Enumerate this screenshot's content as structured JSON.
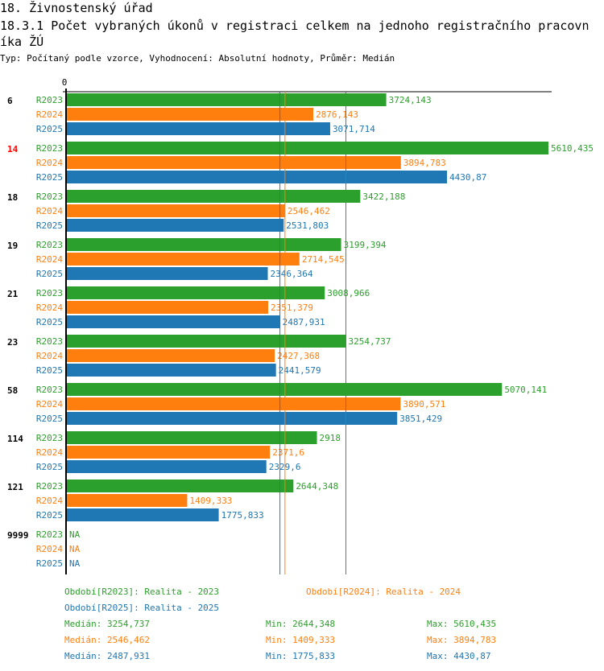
{
  "header": {
    "title": "18. Živnostenský úřad",
    "subtitle": "18.3.1 Počet vybraných úkonů v registraci celkem na jednoho registračního pracovníka ŽÚ",
    "meta": "Typ: Počítaný podle vzorce, Vyhodnocení: Absolutní hodnoty, Průměr: Medián"
  },
  "colors": {
    "R2023": "#2ca02c",
    "R2024": "#ff7f0e",
    "R2025": "#1f77b4",
    "highlight": "#ff0000",
    "axis": "#000000"
  },
  "chart_data": {
    "type": "bar",
    "orientation": "horizontal",
    "title": "18.3.1 Počet vybraných úkonů v registraci celkem na jednoho registračního pracovníka ŽÚ",
    "xlabel": "",
    "ylabel": "",
    "xlim": [
      0,
      5610.435
    ],
    "x_tick_labels": [
      "0"
    ],
    "categories": [
      "6",
      "14",
      "18",
      "19",
      "21",
      "23",
      "58",
      "114",
      "121",
      "9999"
    ],
    "highlighted_category": "14",
    "series": [
      {
        "name": "R2023",
        "values": [
          3724.143,
          5610.435,
          3422.188,
          3199.394,
          3008.966,
          3254.737,
          5070.141,
          2918,
          2644.348,
          null
        ],
        "labels": [
          "3724,143",
          "5610,435",
          "3422,188",
          "3199,394",
          "3008,966",
          "3254,737",
          "5070,141",
          "2918",
          "2644,348",
          "NA"
        ]
      },
      {
        "name": "R2024",
        "values": [
          2876.143,
          3894.783,
          2546.462,
          2714.545,
          2351.379,
          2427.368,
          3890.571,
          2371.6,
          1409.333,
          null
        ],
        "labels": [
          "2876,143",
          "3894,783",
          "2546,462",
          "2714,545",
          "2351,379",
          "2427,368",
          "3890,571",
          "2371,6",
          "1409,333",
          "NA"
        ]
      },
      {
        "name": "R2025",
        "values": [
          3071.714,
          4430.87,
          2531.803,
          2346.364,
          2487.931,
          2441.579,
          3851.429,
          2329.6,
          1775.833,
          null
        ],
        "labels": [
          "3071,714",
          "4430,87",
          "2531,803",
          "2346,364",
          "2487,931",
          "2441,579",
          "3851,429",
          "2329,6",
          "1775,833",
          "NA"
        ]
      }
    ],
    "reference_lines": [
      {
        "series": "R2023",
        "kind": "median",
        "value": 3254.737
      },
      {
        "series": "R2024",
        "kind": "median",
        "value": 2546.462
      },
      {
        "series": "R2025",
        "kind": "median",
        "value": 2487.931
      }
    ],
    "grid": false,
    "legend_position": "bottom"
  },
  "legend": {
    "periods": [
      {
        "series": "R2023",
        "text": "Období[R2023]: Realita - 2023"
      },
      {
        "series": "R2024",
        "text": "Období[R2024]: Realita - 2024"
      },
      {
        "series": "R2025",
        "text": "Období[R2025]: Realita - 2025"
      }
    ],
    "stats": [
      {
        "series": "R2023",
        "median": "Medián: 3254,737",
        "min": "Min: 2644,348",
        "max": "Max: 5610,435"
      },
      {
        "series": "R2024",
        "median": "Medián: 2546,462",
        "min": "Min: 1409,333",
        "max": "Max: 3894,783"
      },
      {
        "series": "R2025",
        "median": "Medián: 2487,931",
        "min": "Min: 1775,833",
        "max": "Max: 4430,87"
      }
    ]
  }
}
